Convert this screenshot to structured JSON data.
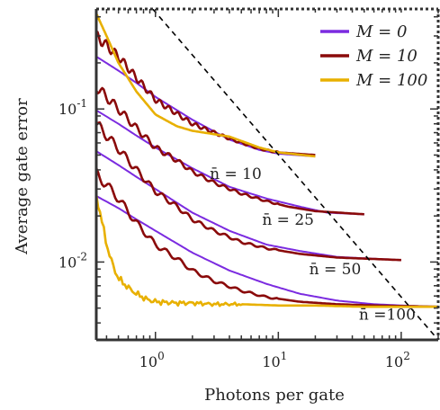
{
  "chart_data": {
    "type": "line",
    "xlabel": "Photons per gate",
    "ylabel": "Average gate error",
    "xscale": "log",
    "yscale": "log",
    "xlim": [
      0.33,
      200
    ],
    "ylim": [
      0.0031,
      0.45
    ],
    "x_ticks": [
      {
        "value": 1,
        "label": "10",
        "exp": "0"
      },
      {
        "value": 10,
        "label": "10",
        "exp": "1"
      },
      {
        "value": 100,
        "label": "10",
        "exp": "2"
      }
    ],
    "y_ticks": [
      {
        "value": 0.01,
        "label": "10",
        "exp": "-2"
      },
      {
        "value": 0.1,
        "label": "10",
        "exp": "-1"
      }
    ],
    "legend": {
      "position": "top-right",
      "entries": [
        {
          "name": "M = 0",
          "color": "#7b2be0"
        },
        {
          "name": "M = 10",
          "color": "#8a0a0a"
        },
        {
          "name": "M = 100",
          "color": "#e8b000"
        }
      ]
    },
    "colors": {
      "M0": "#7b2be0",
      "M10": "#8a0a0a",
      "M100": "#e8b000",
      "reference": "#000000"
    },
    "annotations": [
      {
        "text": "n̄ = 10",
        "x": 4.5,
        "y": 0.035
      },
      {
        "text": "n̄ = 25",
        "x": 12,
        "y": 0.0175
      },
      {
        "text": "n̄ = 50",
        "x": 29,
        "y": 0.0083
      },
      {
        "text": "n̄ =100",
        "x": 77,
        "y": 0.0042
      }
    ],
    "series": [
      {
        "group": "n̄ = 10",
        "M": 0,
        "x": [
          0.33,
          0.5,
          0.7,
          1,
          2,
          4,
          7,
          10,
          20
        ],
        "y": [
          0.22,
          0.178,
          0.148,
          0.12,
          0.085,
          0.063,
          0.054,
          0.051,
          0.049
        ]
      },
      {
        "group": "n̄ = 10",
        "M": 10,
        "x": [
          0.33,
          0.5,
          0.7,
          1,
          1.5,
          2,
          4,
          7,
          10,
          20
        ],
        "y": [
          0.3,
          0.22,
          0.16,
          0.115,
          0.093,
          0.08,
          0.064,
          0.055,
          0.052,
          0.05
        ]
      },
      {
        "group": "n̄ = 10",
        "M": 100,
        "x": [
          0.33,
          0.4,
          0.5,
          0.7,
          1,
          1.5,
          2,
          4,
          7,
          10,
          20
        ],
        "y": [
          0.42,
          0.3,
          0.2,
          0.13,
          0.092,
          0.077,
          0.072,
          0.066,
          0.056,
          0.052,
          0.049
        ]
      },
      {
        "group": "n̄ = 25",
        "M": 0,
        "x": [
          0.33,
          0.5,
          0.7,
          1,
          2,
          4,
          8,
          15,
          25,
          50
        ],
        "y": [
          0.098,
          0.08,
          0.067,
          0.056,
          0.041,
          0.031,
          0.026,
          0.023,
          0.021,
          0.0205
        ]
      },
      {
        "group": "n̄ = 25",
        "M": 10,
        "x": [
          0.33,
          0.5,
          0.7,
          1,
          1.5,
          2,
          3,
          5,
          8,
          12,
          20,
          50
        ],
        "y": [
          0.14,
          0.1,
          0.075,
          0.056,
          0.046,
          0.039,
          0.033,
          0.028,
          0.025,
          0.023,
          0.0215,
          0.0205
        ]
      },
      {
        "group": "n̄ = 50",
        "M": 0,
        "x": [
          0.33,
          0.5,
          0.7,
          1,
          2,
          4,
          8,
          15,
          30,
          60,
          100
        ],
        "y": [
          0.053,
          0.043,
          0.036,
          0.03,
          0.021,
          0.016,
          0.013,
          0.0118,
          0.0108,
          0.0105,
          0.0103
        ]
      },
      {
        "group": "n̄ = 50",
        "M": 10,
        "x": [
          0.33,
          0.5,
          0.7,
          1,
          1.5,
          2,
          3,
          5,
          8,
          15,
          30,
          100
        ],
        "y": [
          0.08,
          0.055,
          0.04,
          0.029,
          0.023,
          0.019,
          0.016,
          0.0135,
          0.0123,
          0.0113,
          0.0107,
          0.0103
        ]
      },
      {
        "group": "n̄ = 100",
        "M": 0,
        "x": [
          0.33,
          0.5,
          0.7,
          1,
          2,
          4,
          8,
          15,
          30,
          60,
          100,
          200
        ],
        "y": [
          0.027,
          0.0225,
          0.019,
          0.016,
          0.0115,
          0.0088,
          0.0072,
          0.0062,
          0.0056,
          0.0053,
          0.0052,
          0.0051
        ]
      },
      {
        "group": "n̄ = 100",
        "M": 10,
        "x": [
          0.33,
          0.5,
          0.7,
          1,
          1.5,
          2,
          3,
          5,
          8,
          15,
          30,
          60,
          200
        ],
        "y": [
          0.038,
          0.026,
          0.018,
          0.013,
          0.0105,
          0.0088,
          0.0075,
          0.0065,
          0.0059,
          0.0055,
          0.0053,
          0.0052,
          0.0051
        ]
      },
      {
        "group": "n̄ = 100",
        "M": 100,
        "x": [
          0.33,
          0.36,
          0.4,
          0.45,
          0.5,
          0.6,
          0.7,
          0.85,
          1,
          1.5,
          2,
          3,
          5,
          10,
          20,
          50,
          200
        ],
        "y": [
          0.027,
          0.02,
          0.013,
          0.0095,
          0.0078,
          0.0068,
          0.0062,
          0.0057,
          0.0055,
          0.0054,
          0.0054,
          0.0053,
          0.0053,
          0.0052,
          0.0052,
          0.0051,
          0.0051
        ]
      },
      {
        "group": "reference",
        "M": null,
        "style": "dashed",
        "x": [
          0.95,
          200
        ],
        "y": [
          0.45,
          0.0031
        ]
      }
    ]
  }
}
